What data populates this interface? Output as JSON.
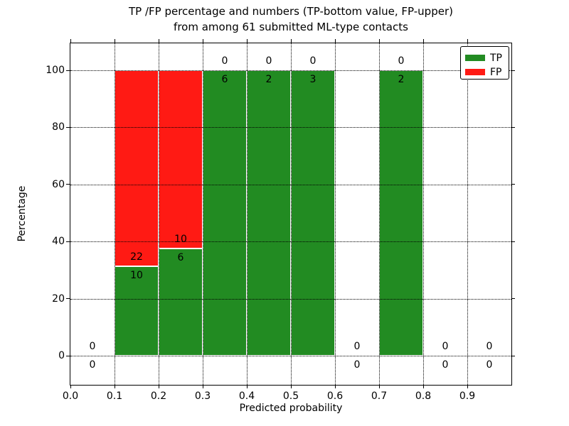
{
  "title": {
    "line1": "TP /FP percentage and numbers (TP-bottom value, FP-upper)",
    "line2": "from among 61 submitted ML-type contacts"
  },
  "chart_data": {
    "type": "bar",
    "stacked": true,
    "title": "TP /FP percentage and numbers (TP-bottom value, FP-upper) from among 61 submitted ML-type contacts",
    "xlabel": "Predicted probability",
    "ylabel": "Percentage",
    "xlim": [
      0.0,
      1.0
    ],
    "ylim": [
      -10,
      110
    ],
    "grid": true,
    "x_tick_labels": [
      "0.0",
      "0.1",
      "0.2",
      "0.3",
      "0.4",
      "0.5",
      "0.6",
      "0.7",
      "0.8",
      "0.9"
    ],
    "y_tick_labels": [
      "0",
      "20",
      "40",
      "60",
      "80",
      "100"
    ],
    "y_tick_values": [
      0,
      20,
      40,
      60,
      80,
      100
    ],
    "bin_width": 0.1,
    "total_contacts": 61,
    "legend": {
      "position": "upper right",
      "entries": [
        {
          "label": "TP",
          "color": "#228B22"
        },
        {
          "label": "FP",
          "color": "#FF1A14"
        }
      ]
    },
    "colors": {
      "tp": "#228B22",
      "fp": "#FF1A14"
    },
    "bins": [
      {
        "range": [
          0.0,
          0.1
        ],
        "tp": 0,
        "fp": 0
      },
      {
        "range": [
          0.1,
          0.2
        ],
        "tp": 10,
        "fp": 22
      },
      {
        "range": [
          0.2,
          0.3
        ],
        "tp": 6,
        "fp": 10
      },
      {
        "range": [
          0.3,
          0.4
        ],
        "tp": 6,
        "fp": 0
      },
      {
        "range": [
          0.4,
          0.5
        ],
        "tp": 2,
        "fp": 0
      },
      {
        "range": [
          0.5,
          0.6
        ],
        "tp": 3,
        "fp": 0
      },
      {
        "range": [
          0.6,
          0.7
        ],
        "tp": 0,
        "fp": 0
      },
      {
        "range": [
          0.7,
          0.8
        ],
        "tp": 2,
        "fp": 0
      },
      {
        "range": [
          0.8,
          0.9
        ],
        "tp": 0,
        "fp": 0
      },
      {
        "range": [
          0.9,
          1.0
        ],
        "tp": 0,
        "fp": 0
      }
    ]
  }
}
